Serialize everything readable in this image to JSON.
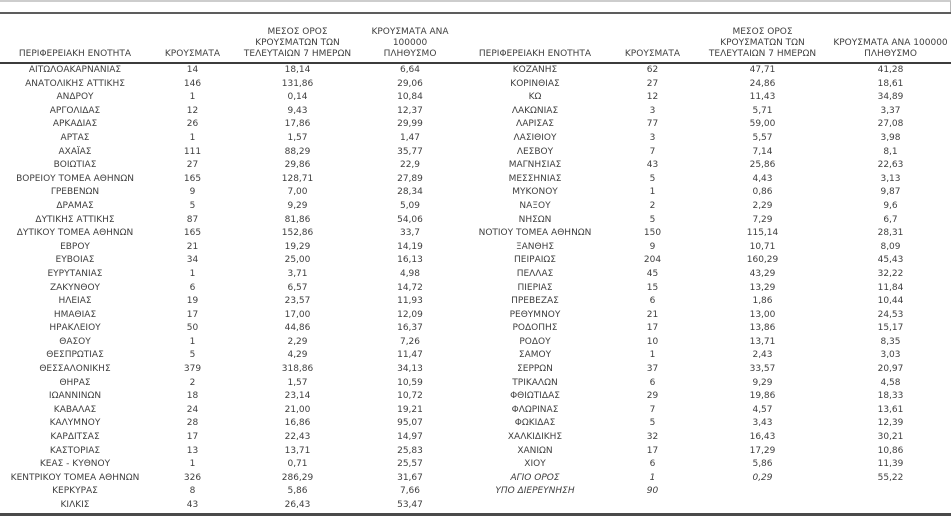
{
  "page": {
    "background_color": "#ffffff",
    "text_color": "#3f3f3f",
    "rule_dark_color": "#5d5d5d",
    "rule_light_color": "#cdcdcd",
    "bottom_rule_color": "#4a4a4a"
  },
  "table": {
    "headers": {
      "region": "ΠΕΡΙΦΕΡΕΙΑΚΗ ΕΝΟΤΗΤΑ",
      "cases": "ΚΡΟΥΣΜΑΤΑ",
      "avg7": "ΜΕΣΟΣ ΟΡΟΣ\nΚΡΟΥΣΜΑΤΩΝ ΤΩΝ\nΤΕΛΕΥΤΑΙΩΝ 7 ΗΜΕΡΩΝ",
      "per100k": "ΚΡΟΥΣΜΑΤΑ ΑΝΑ 100000\nΠΛΗΘΥΣΜΟ"
    },
    "left_rows": [
      {
        "name": "ΑΙΤΩΛΟΑΚΑΡΝΑΝΙΑΣ",
        "cases": "14",
        "avg7": "18,14",
        "per100k": "6,64"
      },
      {
        "name": "ΑΝΑΤΟΛΙΚΗΣ ΑΤΤΙΚΗΣ",
        "cases": "146",
        "avg7": "131,86",
        "per100k": "29,06"
      },
      {
        "name": "ΑΝΔΡΟΥ",
        "cases": "1",
        "avg7": "0,14",
        "per100k": "10,84"
      },
      {
        "name": "ΑΡΓΟΛΙΔΑΣ",
        "cases": "12",
        "avg7": "9,43",
        "per100k": "12,37"
      },
      {
        "name": "ΑΡΚΑΔΙΑΣ",
        "cases": "26",
        "avg7": "17,86",
        "per100k": "29,99"
      },
      {
        "name": "ΑΡΤΑΣ",
        "cases": "1",
        "avg7": "1,57",
        "per100k": "1,47"
      },
      {
        "name": "ΑΧΑΪΑΣ",
        "cases": "111",
        "avg7": "88,29",
        "per100k": "35,77"
      },
      {
        "name": "ΒΟΙΩΤΙΑΣ",
        "cases": "27",
        "avg7": "29,86",
        "per100k": "22,9"
      },
      {
        "name": "ΒΟΡΕΙΟΥ ΤΟΜΕΑ ΑΘΗΝΩΝ",
        "cases": "165",
        "avg7": "128,71",
        "per100k": "27,89"
      },
      {
        "name": "ΓΡΕΒΕΝΩΝ",
        "cases": "9",
        "avg7": "7,00",
        "per100k": "28,34"
      },
      {
        "name": "ΔΡΑΜΑΣ",
        "cases": "5",
        "avg7": "9,29",
        "per100k": "5,09"
      },
      {
        "name": "ΔΥΤΙΚΗΣ ΑΤΤΙΚΗΣ",
        "cases": "87",
        "avg7": "81,86",
        "per100k": "54,06"
      },
      {
        "name": "ΔΥΤΙΚΟΥ ΤΟΜΕΑ ΑΘΗΝΩΝ",
        "cases": "165",
        "avg7": "152,86",
        "per100k": "33,7"
      },
      {
        "name": "ΕΒΡΟΥ",
        "cases": "21",
        "avg7": "19,29",
        "per100k": "14,19"
      },
      {
        "name": "ΕΥΒΟΙΑΣ",
        "cases": "34",
        "avg7": "25,00",
        "per100k": "16,13"
      },
      {
        "name": "ΕΥΡΥΤΑΝΙΑΣ",
        "cases": "1",
        "avg7": "3,71",
        "per100k": "4,98"
      },
      {
        "name": "ΖΑΚΥΝΘΟΥ",
        "cases": "6",
        "avg7": "6,57",
        "per100k": "14,72"
      },
      {
        "name": "ΗΛΕΙΑΣ",
        "cases": "19",
        "avg7": "23,57",
        "per100k": "11,93"
      },
      {
        "name": "ΗΜΑΘΙΑΣ",
        "cases": "17",
        "avg7": "17,00",
        "per100k": "12,09"
      },
      {
        "name": "ΗΡΑΚΛΕΙΟΥ",
        "cases": "50",
        "avg7": "44,86",
        "per100k": "16,37"
      },
      {
        "name": "ΘΑΣΟΥ",
        "cases": "1",
        "avg7": "2,29",
        "per100k": "7,26"
      },
      {
        "name": "ΘΕΣΠΡΩΤΙΑΣ",
        "cases": "5",
        "avg7": "4,29",
        "per100k": "11,47"
      },
      {
        "name": "ΘΕΣΣΑΛΟΝΙΚΗΣ",
        "cases": "379",
        "avg7": "318,86",
        "per100k": "34,13"
      },
      {
        "name": "ΘΗΡΑΣ",
        "cases": "2",
        "avg7": "1,57",
        "per100k": "10,59"
      },
      {
        "name": "ΙΩΑΝΝΙΝΩΝ",
        "cases": "18",
        "avg7": "23,14",
        "per100k": "10,72"
      },
      {
        "name": "ΚΑΒΑΛΑΣ",
        "cases": "24",
        "avg7": "21,00",
        "per100k": "19,21"
      },
      {
        "name": "ΚΑΛΥΜΝΟΥ",
        "cases": "28",
        "avg7": "16,86",
        "per100k": "95,07"
      },
      {
        "name": "ΚΑΡΔΙΤΣΑΣ",
        "cases": "17",
        "avg7": "22,43",
        "per100k": "14,97"
      },
      {
        "name": "ΚΑΣΤΟΡΙΑΣ",
        "cases": "13",
        "avg7": "13,71",
        "per100k": "25,83"
      },
      {
        "name": "ΚΕΑΣ - ΚΥΘΝΟΥ",
        "cases": "1",
        "avg7": "0,71",
        "per100k": "25,57"
      },
      {
        "name": "ΚΕΝΤΡΙΚΟΥ ΤΟΜΕΑ ΑΘΗΝΩΝ",
        "cases": "326",
        "avg7": "286,29",
        "per100k": "31,67"
      },
      {
        "name": "ΚΕΡΚΥΡΑΣ",
        "cases": "8",
        "avg7": "5,86",
        "per100k": "7,66"
      },
      {
        "name": "ΚΙΛΚΙΣ",
        "cases": "43",
        "avg7": "26,43",
        "per100k": "53,47"
      }
    ],
    "right_rows": [
      {
        "name": "ΚΟΖΑΝΗΣ",
        "cases": "62",
        "avg7": "47,71",
        "per100k": "41,28"
      },
      {
        "name": "ΚΟΡΙΝΘΙΑΣ",
        "cases": "27",
        "avg7": "24,86",
        "per100k": "18,61"
      },
      {
        "name": "ΚΩ",
        "cases": "12",
        "avg7": "11,43",
        "per100k": "34,89"
      },
      {
        "name": "ΛΑΚΩΝΙΑΣ",
        "cases": "3",
        "avg7": "5,71",
        "per100k": "3,37"
      },
      {
        "name": "ΛΑΡΙΣΑΣ",
        "cases": "77",
        "avg7": "59,00",
        "per100k": "27,08"
      },
      {
        "name": "ΛΑΣΙΘΙΟΥ",
        "cases": "3",
        "avg7": "5,57",
        "per100k": "3,98"
      },
      {
        "name": "ΛΕΣΒΟΥ",
        "cases": "7",
        "avg7": "7,14",
        "per100k": "8,1"
      },
      {
        "name": "ΜΑΓΝΗΣΙΑΣ",
        "cases": "43",
        "avg7": "25,86",
        "per100k": "22,63"
      },
      {
        "name": "ΜΕΣΣΗΝΙΑΣ",
        "cases": "5",
        "avg7": "4,43",
        "per100k": "3,13"
      },
      {
        "name": "ΜΥΚΟΝΟΥ",
        "cases": "1",
        "avg7": "0,86",
        "per100k": "9,87"
      },
      {
        "name": "ΝΑΞΟΥ",
        "cases": "2",
        "avg7": "2,29",
        "per100k": "9,6"
      },
      {
        "name": "ΝΗΣΩΝ",
        "cases": "5",
        "avg7": "7,29",
        "per100k": "6,7"
      },
      {
        "name": "ΝΟΤΙΟΥ ΤΟΜΕΑ ΑΘΗΝΩΝ",
        "cases": "150",
        "avg7": "115,14",
        "per100k": "28,31"
      },
      {
        "name": "ΞΑΝΘΗΣ",
        "cases": "9",
        "avg7": "10,71",
        "per100k": "8,09"
      },
      {
        "name": "ΠΕΙΡΑΙΩΣ",
        "cases": "204",
        "avg7": "160,29",
        "per100k": "45,43"
      },
      {
        "name": "ΠΕΛΛΑΣ",
        "cases": "45",
        "avg7": "43,29",
        "per100k": "32,22"
      },
      {
        "name": "ΠΙΕΡΙΑΣ",
        "cases": "15",
        "avg7": "13,29",
        "per100k": "11,84"
      },
      {
        "name": "ΠΡΕΒΕΖΑΣ",
        "cases": "6",
        "avg7": "1,86",
        "per100k": "10,44"
      },
      {
        "name": "ΡΕΘΥΜΝΟΥ",
        "cases": "21",
        "avg7": "13,00",
        "per100k": "24,53"
      },
      {
        "name": "ΡΟΔΟΠΗΣ",
        "cases": "17",
        "avg7": "13,86",
        "per100k": "15,17"
      },
      {
        "name": "ΡΟΔΟΥ",
        "cases": "10",
        "avg7": "13,71",
        "per100k": "8,35"
      },
      {
        "name": "ΣΑΜΟΥ",
        "cases": "1",
        "avg7": "2,43",
        "per100k": "3,03"
      },
      {
        "name": "ΣΕΡΡΩΝ",
        "cases": "37",
        "avg7": "33,57",
        "per100k": "20,97"
      },
      {
        "name": "ΤΡΙΚΑΛΩΝ",
        "cases": "6",
        "avg7": "9,29",
        "per100k": "4,58"
      },
      {
        "name": "ΦΘΙΩΤΙΔΑΣ",
        "cases": "29",
        "avg7": "19,86",
        "per100k": "18,33"
      },
      {
        "name": "ΦΛΩΡΙΝΑΣ",
        "cases": "7",
        "avg7": "4,57",
        "per100k": "13,61"
      },
      {
        "name": "ΦΩΚΙΔΑΣ",
        "cases": "5",
        "avg7": "3,43",
        "per100k": "12,39"
      },
      {
        "name": "ΧΑΛΚΙΔΙΚΗΣ",
        "cases": "32",
        "avg7": "16,43",
        "per100k": "30,21"
      },
      {
        "name": "ΧΑΝΙΩΝ",
        "cases": "17",
        "avg7": "17,29",
        "per100k": "10,86"
      },
      {
        "name": "ΧΙΟΥ",
        "cases": "6",
        "avg7": "5,86",
        "per100k": "11,39"
      },
      {
        "name": "ΑΓΙΟ ΟΡΟΣ",
        "cases": "1",
        "avg7": "0,29",
        "per100k": "55,22",
        "italic": true
      },
      {
        "name": "ΥΠΟ ΔΙΕΡΕΥΝΗΣΗ",
        "cases": "90",
        "avg7": "",
        "per100k": "",
        "italic": true
      }
    ]
  }
}
